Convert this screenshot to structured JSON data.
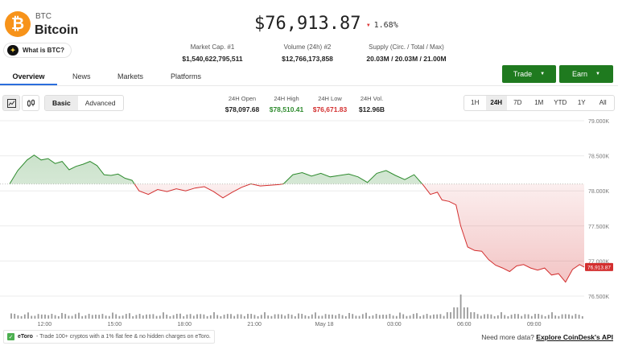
{
  "asset": {
    "logo_glyph": "₿",
    "ticker": "BTC",
    "name": "Bitcoin",
    "what_is_label": "What is BTC?",
    "price": "$76,913.87",
    "change": "1.68%",
    "change_direction": "down",
    "colors": {
      "brand": "#f7931a",
      "up": "#2e8b2e",
      "down": "#d32f2f",
      "action": "#1f7a1f"
    }
  },
  "stats": [
    {
      "label": "Market Cap. #1",
      "value": "$1,540,622,795,511"
    },
    {
      "label": "Volume (24h) #2",
      "value": "$12,766,173,858"
    },
    {
      "label": "Supply (Circ. / Total / Max)",
      "value": "20.03M / 20.03M / 21.00M"
    }
  ],
  "actions": {
    "trade_label": "Trade",
    "earn_label": "Earn"
  },
  "tabs": [
    {
      "label": "Overview",
      "active": true
    },
    {
      "label": "News",
      "active": false
    },
    {
      "label": "Markets",
      "active": false
    },
    {
      "label": "Platforms",
      "active": false
    }
  ],
  "chart_modes": {
    "line_icon": "line-chart-icon",
    "candle_icon": "candlestick-icon"
  },
  "views": {
    "basic": "Basic",
    "advanced": "Advanced",
    "active": "Basic"
  },
  "ohlc": [
    {
      "label": "24H Open",
      "value": "$78,097.68",
      "color": "#222222"
    },
    {
      "label": "24H High",
      "value": "$78,510.41",
      "color": "#2e8b2e"
    },
    {
      "label": "24H Low",
      "value": "$76,671.83",
      "color": "#d32f2f"
    },
    {
      "label": "24H Vol.",
      "value": "$12.96B",
      "color": "#222222"
    }
  ],
  "ranges": {
    "options": [
      "1H",
      "24H",
      "7D",
      "1M",
      "YTD",
      "1Y",
      "All"
    ],
    "active": "24H"
  },
  "chart_data": {
    "type": "line",
    "title": "",
    "x": [
      "12:00",
      "15:00",
      "18:00",
      "21:00",
      "May 18",
      "03:00",
      "06:00",
      "09:00"
    ],
    "x_positions": [
      0.75,
      3.75,
      6.75,
      9.75,
      12.75,
      15.75,
      18.75,
      21.75
    ],
    "x_range_hours": [
      -0.75,
      23.9
    ],
    "y_ticks": [
      "79.000K",
      "78.500K",
      "78.000K",
      "77.500K",
      "77.000K",
      "76.500K"
    ],
    "ylim": [
      76500,
      79000
    ],
    "baseline": 78097.68,
    "current_label": "76,913.87",
    "series": [
      {
        "values": [
          [
            -0.75,
            78100
          ],
          [
            -0.4,
            78290
          ],
          [
            0.0,
            78440
          ],
          [
            0.3,
            78510
          ],
          [
            0.6,
            78440
          ],
          [
            0.9,
            78460
          ],
          [
            1.2,
            78390
          ],
          [
            1.5,
            78420
          ],
          [
            1.8,
            78300
          ],
          [
            2.1,
            78350
          ],
          [
            2.4,
            78380
          ],
          [
            2.7,
            78420
          ],
          [
            3.0,
            78360
          ],
          [
            3.3,
            78230
          ],
          [
            3.6,
            78220
          ],
          [
            3.9,
            78240
          ],
          [
            4.2,
            78180
          ],
          [
            4.5,
            78150
          ],
          [
            4.8,
            78000
          ],
          [
            5.2,
            77950
          ],
          [
            5.6,
            78020
          ],
          [
            6.0,
            77990
          ],
          [
            6.4,
            78030
          ],
          [
            6.8,
            78000
          ],
          [
            7.2,
            78040
          ],
          [
            7.6,
            78060
          ],
          [
            8.0,
            77990
          ],
          [
            8.4,
            77900
          ],
          [
            8.8,
            77980
          ],
          [
            9.2,
            78050
          ],
          [
            9.6,
            78100
          ],
          [
            10.0,
            78070
          ],
          [
            10.4,
            78080
          ],
          [
            10.8,
            78090
          ],
          [
            11.0,
            78100
          ],
          [
            11.4,
            78230
          ],
          [
            11.8,
            78260
          ],
          [
            12.2,
            78210
          ],
          [
            12.6,
            78250
          ],
          [
            13.0,
            78200
          ],
          [
            13.4,
            78220
          ],
          [
            13.8,
            78240
          ],
          [
            14.2,
            78200
          ],
          [
            14.6,
            78120
          ],
          [
            15.0,
            78250
          ],
          [
            15.4,
            78290
          ],
          [
            15.8,
            78220
          ],
          [
            16.2,
            78160
          ],
          [
            16.6,
            78230
          ],
          [
            17.0,
            78080
          ],
          [
            17.3,
            77950
          ],
          [
            17.6,
            77980
          ],
          [
            17.8,
            77870
          ],
          [
            18.1,
            77850
          ],
          [
            18.4,
            77800
          ],
          [
            18.6,
            77500
          ],
          [
            18.9,
            77200
          ],
          [
            19.2,
            77150
          ],
          [
            19.5,
            77140
          ],
          [
            19.8,
            77020
          ],
          [
            20.1,
            76940
          ],
          [
            20.4,
            76900
          ],
          [
            20.7,
            76850
          ],
          [
            21.0,
            76930
          ],
          [
            21.3,
            76950
          ],
          [
            21.6,
            76900
          ],
          [
            21.9,
            76870
          ],
          [
            22.2,
            76900
          ],
          [
            22.5,
            76800
          ],
          [
            22.8,
            76820
          ],
          [
            23.1,
            76700
          ],
          [
            23.4,
            76880
          ],
          [
            23.7,
            76950
          ],
          [
            23.9,
            76913.87
          ]
        ]
      }
    ],
    "volume_spike_at": 18.6
  },
  "footer": {
    "ad_icon": "check-icon",
    "ad_brand": "eToro",
    "ad_text": "- Trade 100+ cryptos with a 1% flat fee & no hidden charges on eToro.",
    "more_data_text": "Need more data?",
    "api_link": "Explore CoinDesk's API"
  }
}
